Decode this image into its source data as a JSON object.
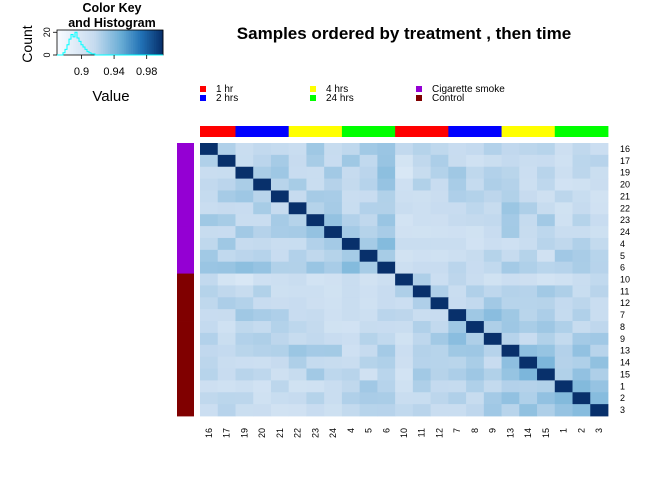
{
  "chart_data": {
    "type": "heatmap",
    "title": "Samples ordered by treatment , then time",
    "labels": [
      "16",
      "17",
      "19",
      "20",
      "21",
      "22",
      "23",
      "24",
      "4",
      "5",
      "6",
      "10",
      "11",
      "12",
      "7",
      "8",
      "9",
      "13",
      "14",
      "15",
      "1",
      "2",
      "3"
    ],
    "time_groups": [
      "1 hr",
      "1 hr",
      "2 hrs",
      "2 hrs",
      "2 hrs",
      "4 hrs",
      "4 hrs",
      "4 hrs",
      "24 hrs",
      "24 hrs",
      "24 hrs",
      "1 hr",
      "1 hr",
      "1 hr",
      "2 hrs",
      "2 hrs",
      "2 hrs",
      "4 hrs",
      "4 hrs",
      "4 hrs",
      "24 hrs",
      "24 hrs",
      "24 hrs"
    ],
    "treatment_groups": [
      "Cigarette smoke",
      "Cigarette smoke",
      "Cigarette smoke",
      "Cigarette smoke",
      "Cigarette smoke",
      "Cigarette smoke",
      "Cigarette smoke",
      "Cigarette smoke",
      "Cigarette smoke",
      "Cigarette smoke",
      "Cigarette smoke",
      "Control",
      "Control",
      "Control",
      "Control",
      "Control",
      "Control",
      "Control",
      "Control",
      "Control",
      "Control",
      "Control",
      "Control"
    ],
    "legend": [
      {
        "label": "1 hr",
        "color": "#ff0000"
      },
      {
        "label": "2 hrs",
        "color": "#0000ff"
      },
      {
        "label": "4 hrs",
        "color": "#ffff00"
      },
      {
        "label": "24 hrs",
        "color": "#00ff00"
      },
      {
        "label": "Cigarette smoke",
        "color": "#9400d3"
      },
      {
        "label": "Control",
        "color": "#800000"
      }
    ],
    "value_range": [
      0.87,
      1.0
    ],
    "color_key": {
      "title_line1": "Color Key",
      "title_line2": "and Histogram",
      "xlabel": "Value",
      "ylabel": "Count",
      "x_ticks": [
        "0.9",
        "0.94",
        "0.98"
      ],
      "x_tick_values": [
        0.9,
        0.94,
        0.98
      ],
      "y_ticks": [
        "0",
        "20"
      ],
      "y_tick_values": [
        0,
        20
      ],
      "hist_counts": [
        0,
        0,
        0,
        2,
        5,
        9,
        14,
        18,
        16,
        20,
        15,
        12,
        9,
        7,
        5,
        3,
        2,
        1,
        1,
        0,
        0,
        0,
        0,
        0,
        0,
        0,
        0,
        0,
        0,
        0,
        0,
        0,
        0,
        0,
        0,
        0,
        0,
        0,
        0,
        0,
        0,
        0,
        0,
        0,
        0,
        0,
        0,
        0,
        0,
        0,
        0,
        0,
        0
      ]
    },
    "colors": {
      "low": "#f7fbff",
      "high": "#08306b",
      "hist": "#00ffff"
    }
  }
}
